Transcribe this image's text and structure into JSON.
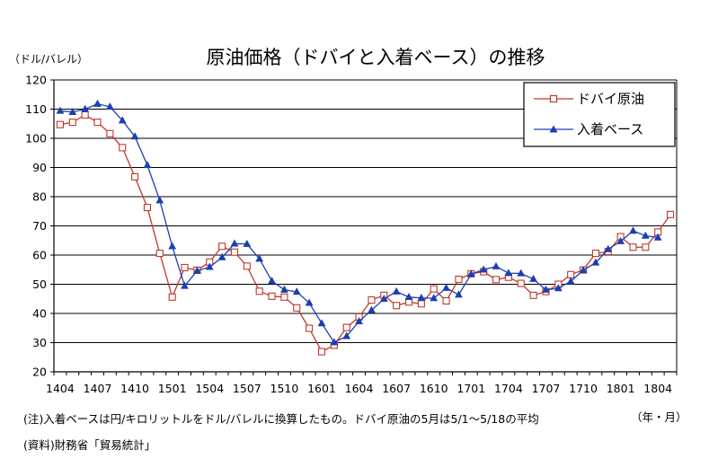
{
  "chart_data": {
    "type": "line",
    "title": "原油価格（ドバイと入着ベース）の推移",
    "ylabel": "（ドル/バレル）",
    "xlabel": "（年・月）",
    "ylim": [
      20,
      120
    ],
    "yticks": [
      20,
      30,
      40,
      50,
      60,
      70,
      80,
      90,
      100,
      110,
      120
    ],
    "grid": "horizontal",
    "legend_position": "top-right",
    "x_tick_labels": [
      "1404",
      "1407",
      "1410",
      "1501",
      "1504",
      "1507",
      "1510",
      "1601",
      "1604",
      "1607",
      "1610",
      "1701",
      "1704",
      "1707",
      "1710",
      "1801",
      "1804"
    ],
    "x": [
      "1404",
      "1405",
      "1406",
      "1407",
      "1408",
      "1409",
      "1410",
      "1411",
      "1412",
      "1501",
      "1502",
      "1503",
      "1504",
      "1505",
      "1506",
      "1507",
      "1508",
      "1509",
      "1510",
      "1511",
      "1512",
      "1601",
      "1602",
      "1603",
      "1604",
      "1605",
      "1606",
      "1607",
      "1608",
      "1609",
      "1610",
      "1611",
      "1612",
      "1701",
      "1702",
      "1703",
      "1704",
      "1705",
      "1706",
      "1707",
      "1708",
      "1709",
      "1710",
      "1711",
      "1712",
      "1801",
      "1802",
      "1803",
      "1804",
      "1805"
    ],
    "series": [
      {
        "name": "ドバイ原油",
        "color": "#c0392b",
        "marker": "square-open",
        "values": [
          104.7,
          105.5,
          108.0,
          105.5,
          101.6,
          96.8,
          86.8,
          76.3,
          60.6,
          45.6,
          55.7,
          54.8,
          57.6,
          63.0,
          61.0,
          56.2,
          47.6,
          45.9,
          45.6,
          41.9,
          34.9,
          26.9,
          29.1,
          35.2,
          38.8,
          44.6,
          46.2,
          42.7,
          43.9,
          43.3,
          48.4,
          44.3,
          51.7,
          53.6,
          54.3,
          51.6,
          52.4,
          50.3,
          46.2,
          47.5,
          50.0,
          53.3,
          54.9,
          60.6,
          61.2,
          66.3,
          62.7,
          62.7,
          67.9,
          73.9
        ]
      },
      {
        "name": "入着ベース",
        "color": "#1a3fb0",
        "marker": "triangle-filled",
        "values": [
          109.4,
          109.0,
          110.0,
          111.8,
          110.8,
          106.1,
          100.6,
          90.8,
          78.7,
          63.0,
          49.4,
          54.6,
          55.9,
          59.2,
          63.9,
          63.8,
          58.7,
          51.1,
          48.1,
          47.4,
          43.6,
          36.6,
          30.1,
          32.2,
          37.3,
          41.1,
          45.0,
          47.5,
          45.6,
          45.3,
          45.2,
          48.7,
          46.4,
          53.5,
          55.0,
          56.1,
          53.8,
          53.7,
          51.8,
          48.1,
          48.6,
          51.0,
          54.8,
          57.4,
          62.0,
          64.7,
          68.3,
          66.6,
          66.0,
          null
        ]
      }
    ]
  },
  "notes": {
    "note1": "(注)入着ベースは円/キロリットルをドル/バレルに換算したもの。ドバイ原油の5月は5/1～5/18の平均",
    "source": "(資料)財務省「貿易統計」"
  }
}
